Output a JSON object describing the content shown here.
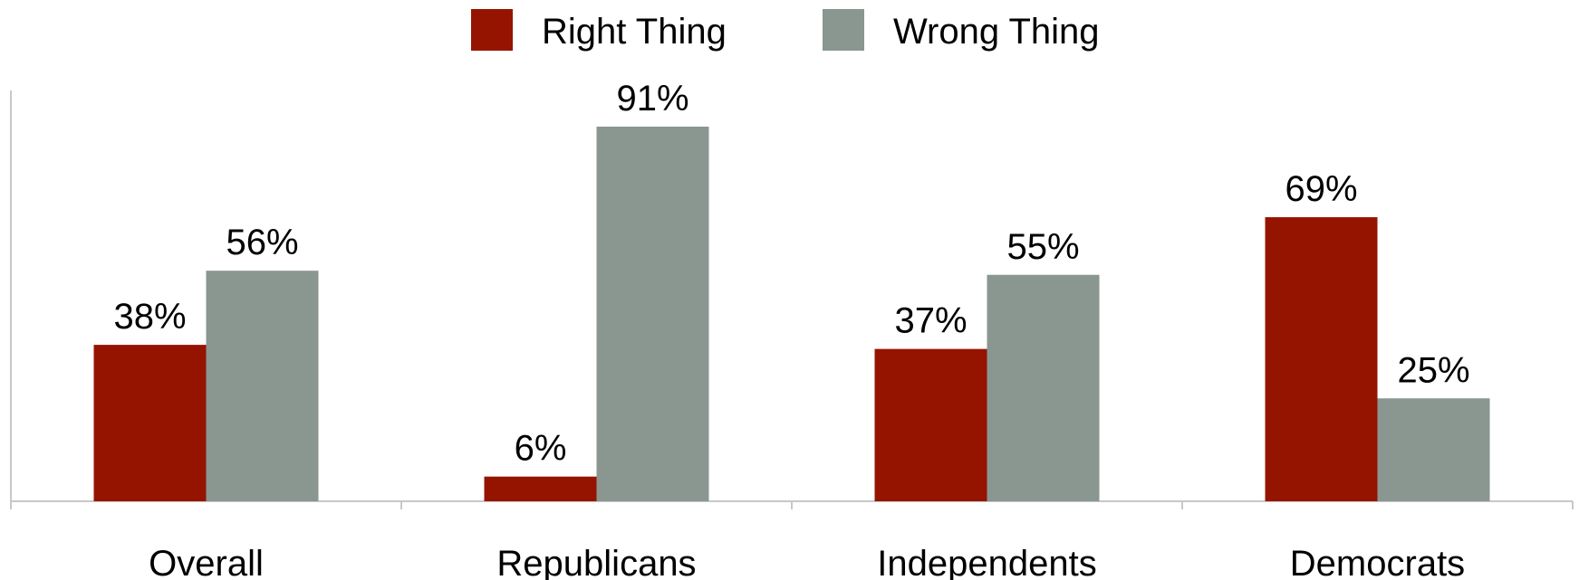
{
  "chart_data": {
    "type": "bar",
    "categories": [
      "Overall",
      "Republicans",
      "Independents",
      "Democrats"
    ],
    "series": [
      {
        "name": "Right Thing",
        "values": [
          38,
          6,
          37,
          69
        ],
        "labels": [
          "38%",
          "6%",
          "37%",
          "69%"
        ],
        "color": "#951400"
      },
      {
        "name": "Wrong Thing",
        "values": [
          56,
          91,
          55,
          25
        ],
        "labels": [
          "56%",
          "91%",
          "55%",
          "25%"
        ],
        "color": "#8a9690"
      }
    ],
    "title": "",
    "xlabel": "",
    "ylabel": "",
    "ylim": [
      0,
      100
    ],
    "grid": false,
    "legend_position": "top-center",
    "axis_color": "#c8c8c8"
  }
}
